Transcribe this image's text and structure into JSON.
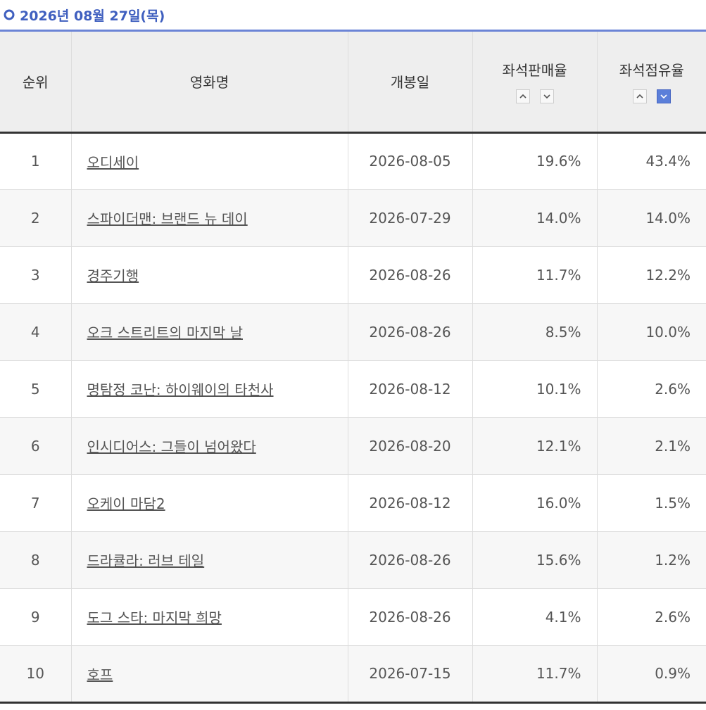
{
  "header": {
    "title": "2026년 08월 27일(목)"
  },
  "table": {
    "columns": [
      "순위",
      "영화명",
      "개봉일",
      "좌석판매율",
      "좌석점유율"
    ],
    "rows": [
      [
        "1",
        "오디세이",
        "2026-08-05",
        "19.6%",
        "43.4%"
      ],
      [
        "2",
        "스파이더맨: 브랜드 뉴 데이",
        "2026-07-29",
        "14.0%",
        "14.0%"
      ],
      [
        "3",
        "경주기행",
        "2026-08-26",
        "11.7%",
        "12.2%"
      ],
      [
        "4",
        "오크 스트리트의 마지막 날",
        "2026-08-26",
        "8.5%",
        "10.0%"
      ],
      [
        "5",
        "명탐정 코난: 하이웨이의 타천사",
        "2026-08-12",
        "10.1%",
        "2.6%"
      ],
      [
        "6",
        "인시디어스: 그들이 넘어왔다",
        "2026-08-20",
        "12.1%",
        "2.1%"
      ],
      [
        "7",
        "오케이 마담2",
        "2026-08-12",
        "16.0%",
        "1.5%"
      ],
      [
        "8",
        "드라큘라: 러브 테일",
        "2026-08-26",
        "15.6%",
        "1.2%"
      ],
      [
        "9",
        "도그 스타: 마지막 희망",
        "2026-08-26",
        "4.1%",
        "2.6%"
      ],
      [
        "10",
        "호프",
        "2026-07-15",
        "11.7%",
        "0.9%"
      ]
    ]
  }
}
